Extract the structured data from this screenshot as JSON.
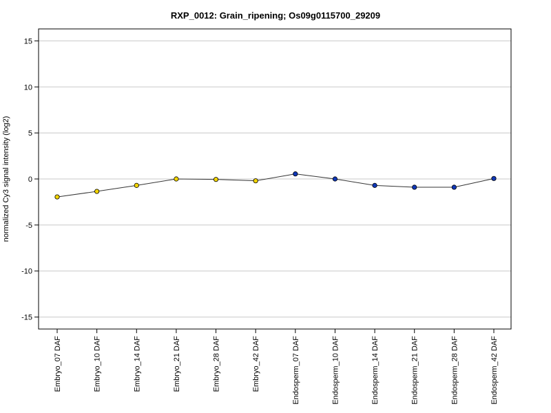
{
  "chart_data": {
    "type": "line",
    "title": "RXP_0012: Grain_ripening; Os09g0115700_29209",
    "xlabel": "",
    "ylabel": "normalized Cy3 signal intensity (log2)",
    "ylim": [
      -16.3,
      16.3
    ],
    "yticks": [
      -15,
      -10,
      -5,
      0,
      5,
      10,
      15
    ],
    "grid": true,
    "categories": [
      "Embryo_07 DAF",
      "Embryo_10 DAF",
      "Embryo_14 DAF",
      "Embryo_21 DAF",
      "Embryo_28 DAF",
      "Embryo_42 DAF",
      "Endosperm_07 DAF",
      "Endosperm_10 DAF",
      "Endosperm_14 DAF",
      "Endosperm_21 DAF",
      "Endosperm_28 DAF",
      "Endosperm_42 DAF"
    ],
    "values": [
      -1.95,
      -1.35,
      -0.7,
      0.0,
      -0.05,
      -0.2,
      0.55,
      0.0,
      -0.7,
      -0.9,
      -0.9,
      0.05
    ],
    "point_colors": [
      "#f2d400",
      "#f2d400",
      "#f2d400",
      "#f2d400",
      "#f2d400",
      "#f2d400",
      "#1038b8",
      "#1038b8",
      "#1038b8",
      "#1038b8",
      "#1038b8",
      "#1038b8"
    ],
    "line_color": "#333333",
    "grid_color": "#c8c8c8"
  }
}
